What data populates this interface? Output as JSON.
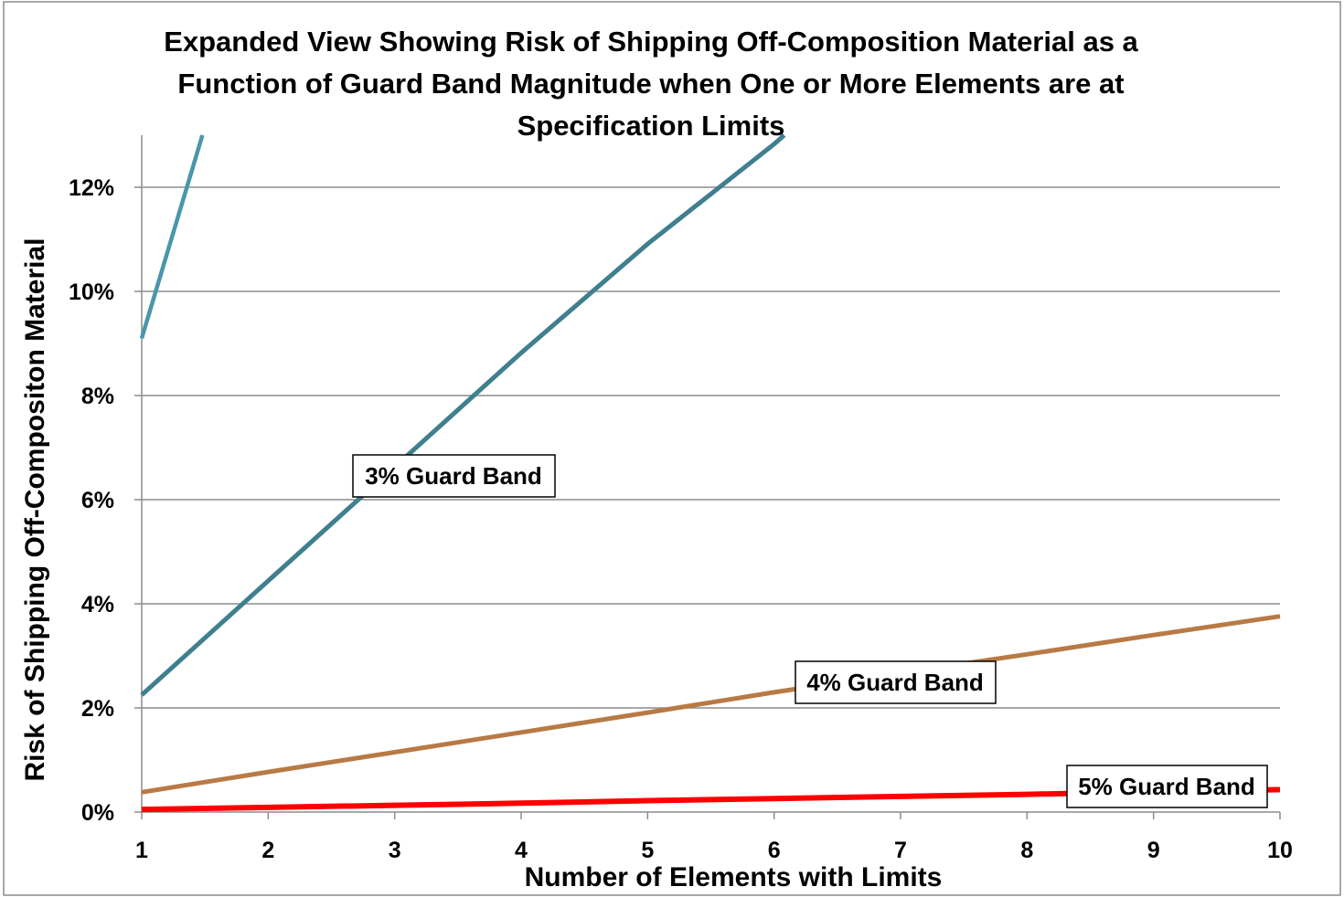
{
  "chart_data": {
    "type": "line",
    "title": "Expanded View Showing Risk of Shipping Off-Composition Material as a Function of Guard Band Magnitude when One or More Elements are at Specification Limits",
    "title_lines": [
      "Expanded View Showing Risk of Shipping Off-Composition Material as a",
      "Function of Guard Band Magnitude when One or More Elements are at",
      "Specification Limits"
    ],
    "xlabel": "Number of Elements with Limits",
    "ylabel": "Risk of Shipping Off-Compositon Material",
    "x_ticks": [
      "1",
      "2",
      "3",
      "4",
      "5",
      "6",
      "7",
      "8",
      "9",
      "10"
    ],
    "y_ticks": [
      "0%",
      "2%",
      "4%",
      "6%",
      "8%",
      "10%",
      "12%"
    ],
    "xlim": [
      1,
      10
    ],
    "ylim": [
      0,
      13
    ],
    "grid": "horizontal",
    "series": [
      {
        "color": "#4a96ab",
        "x": [
          1,
          1.48
        ],
        "y": [
          9.1,
          13.0
        ]
      },
      {
        "name": "3% Guard Band",
        "color": "#3f7f8f",
        "x": [
          1,
          2,
          3,
          4,
          5,
          6,
          6.08
        ],
        "y": [
          2.25,
          4.44,
          6.63,
          8.82,
          10.91,
          12.83,
          13.0
        ]
      },
      {
        "name": "4% Guard Band",
        "color": "#b87a45",
        "x": [
          1,
          2,
          3,
          4,
          5,
          6,
          7,
          8,
          9,
          10
        ],
        "y": [
          0.38,
          0.77,
          1.15,
          1.53,
          1.91,
          2.3,
          2.67,
          3.03,
          3.4,
          3.76
        ]
      },
      {
        "name": "5% Guard Band",
        "color": "#ff0000",
        "x": [
          1,
          2,
          3,
          4,
          5,
          6,
          7,
          8,
          9,
          10
        ],
        "y": [
          0.05,
          0.09,
          0.13,
          0.17,
          0.22,
          0.26,
          0.3,
          0.34,
          0.39,
          0.43
        ]
      }
    ],
    "annotations": [
      {
        "text": "3% Guard Band",
        "series": 1
      },
      {
        "text": "4% Guard Band",
        "series": 2
      },
      {
        "text": "5% Guard Band",
        "series": 3
      }
    ]
  }
}
